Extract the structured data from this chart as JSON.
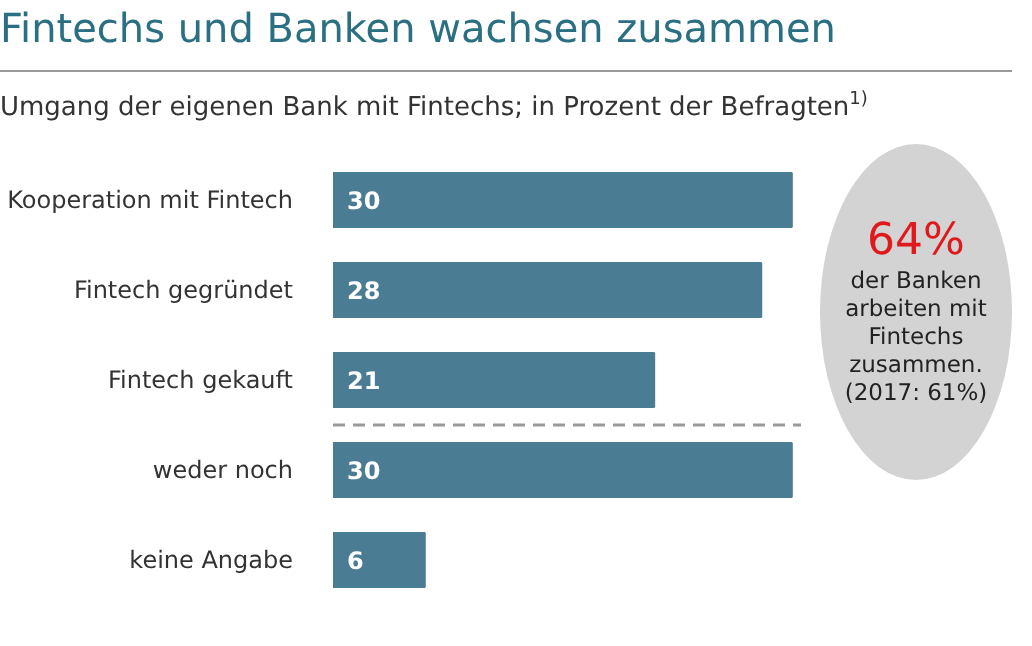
{
  "chart_data": {
    "type": "bar",
    "orientation": "horizontal",
    "title": "Fintechs und Banken wachsen zusammen",
    "subtitle": "Umgang der eigenen Bank mit Fintechs; in Prozent der Befragten$^{1)}$",
    "categories": [
      "Kooperation mit Fintech",
      "Fintech gegründet",
      "Fintech gekauft",
      "weder noch",
      "keine Angabe"
    ],
    "values": [
      30,
      28,
      21,
      30,
      6
    ],
    "color": "#4a7d93",
    "data_labels": true,
    "annotations": [
      "64%",
      "der Banken arbeiten mit Fintechs zusammen. (2017: 61%)"
    ]
  }
}
